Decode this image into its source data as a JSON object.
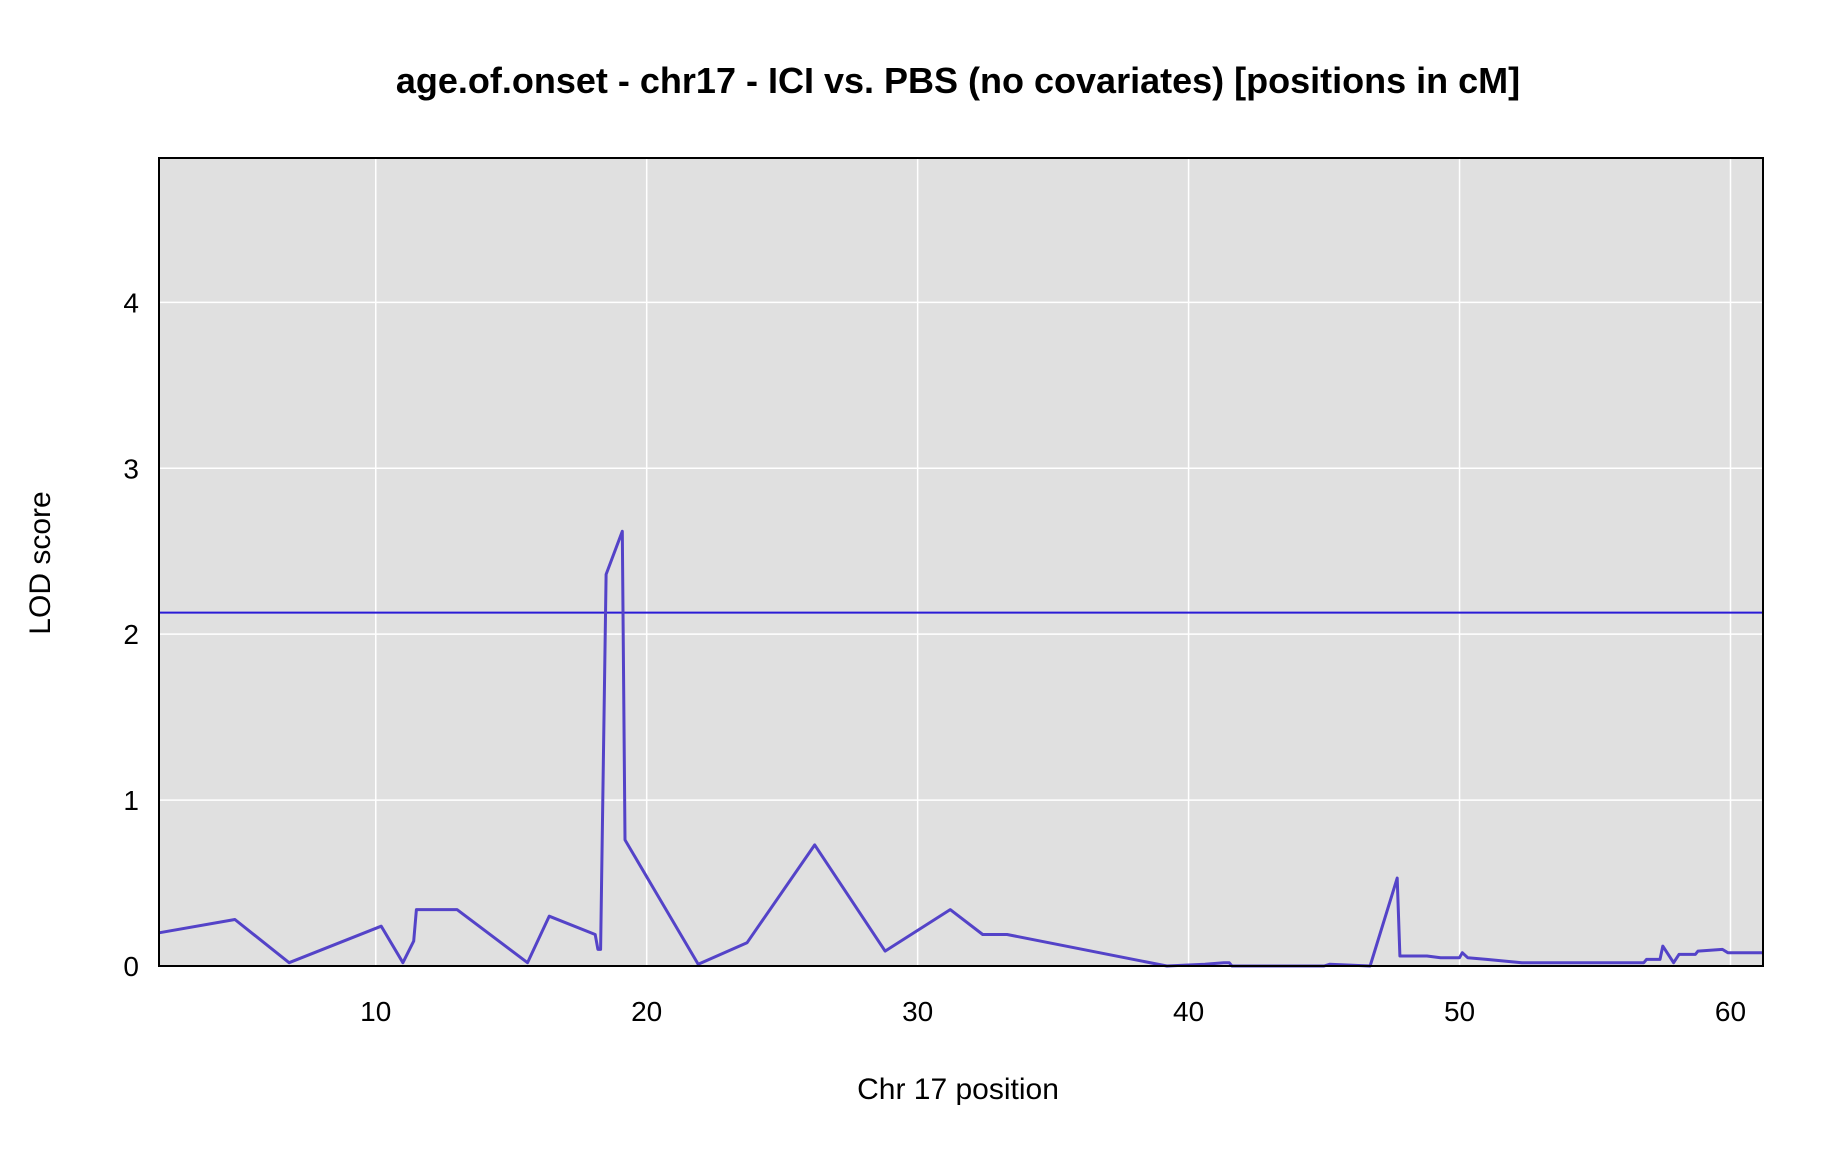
{
  "chart_data": {
    "type": "line",
    "title": "age.of.onset - chr17 - ICI vs. PBS (no covariates) [positions in cM]",
    "xlabel": "Chr 17 position",
    "ylabel": "LOD score",
    "xlim": [
      2,
      61.2
    ],
    "ylim": [
      0,
      4.87
    ],
    "xticks": [
      10,
      20,
      30,
      40,
      50,
      60
    ],
    "yticks": [
      0,
      1,
      2,
      3,
      4
    ],
    "grid": true,
    "background": "#e0e0e0",
    "threshold": {
      "value": 2.13,
      "color": "#2a1bd6"
    },
    "series": [
      {
        "color": "#5443c8",
        "x": [
          2.0,
          4.8,
          6.8,
          10.2,
          11.0,
          11.4,
          11.5,
          13.0,
          15.6,
          16.4,
          18.1,
          18.2,
          18.3,
          18.5,
          19.1,
          19.2,
          21.9,
          23.7,
          26.2,
          28.8,
          31.2,
          32.4,
          33.3,
          39.2,
          40.6,
          41.3,
          41.5,
          41.6,
          45.0,
          45.2,
          46.7,
          47.7,
          47.8,
          48.8,
          49.3,
          50.0,
          50.1,
          50.3,
          51.0,
          52.3,
          55.3,
          56.8,
          56.9,
          57.4,
          57.5,
          57.9,
          58.1,
          58.7,
          58.8,
          59.7,
          59.9,
          61.2
        ],
        "y": [
          0.2,
          0.28,
          0.02,
          0.24,
          0.02,
          0.15,
          0.34,
          0.34,
          0.02,
          0.3,
          0.19,
          0.1,
          0.1,
          2.36,
          2.62,
          0.76,
          0.01,
          0.14,
          0.73,
          0.09,
          0.34,
          0.19,
          0.19,
          0.0,
          0.01,
          0.02,
          0.02,
          0.0,
          0.0,
          0.01,
          0.0,
          0.53,
          0.06,
          0.06,
          0.05,
          0.05,
          0.08,
          0.05,
          0.04,
          0.02,
          0.02,
          0.02,
          0.04,
          0.04,
          0.12,
          0.02,
          0.07,
          0.07,
          0.09,
          0.1,
          0.08,
          0.08
        ]
      }
    ]
  }
}
